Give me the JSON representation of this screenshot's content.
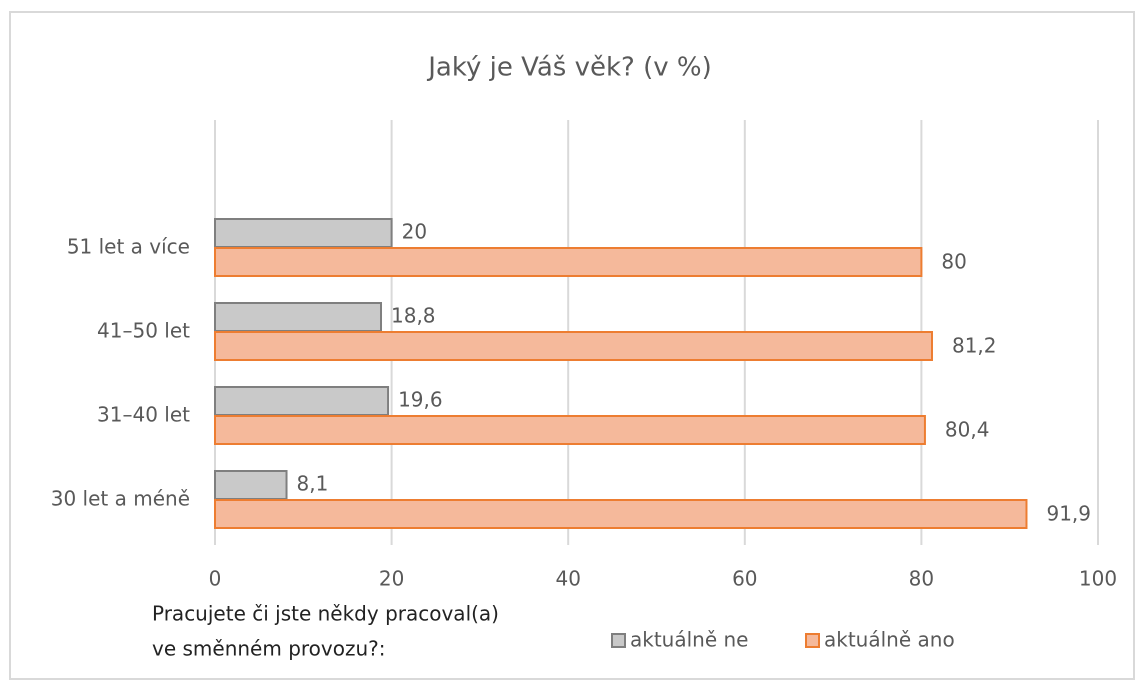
{
  "chart_data": {
    "type": "bar",
    "orientation": "horizontal",
    "title": "Jaký je Váš věk? (v %)",
    "categories": [
      "51 let a více",
      "41–50 let",
      "31–40 let",
      "30 let a méně"
    ],
    "series": [
      {
        "name": "aktuálně ne",
        "color": "#c9c9c9",
        "values": [
          20,
          18.8,
          19.6,
          8.1
        ],
        "value_labels": [
          "20",
          "18,8",
          "19,6",
          "8,1"
        ]
      },
      {
        "name": "aktuálně ano",
        "color": "#f5b99b",
        "values": [
          80,
          81.2,
          80.4,
          91.9
        ],
        "value_labels": [
          "80",
          "81,2",
          "80,4",
          "91,9"
        ]
      }
    ],
    "xlim": [
      0,
      100
    ],
    "xticks": [
      0,
      20,
      40,
      60,
      80,
      100
    ],
    "grid": true,
    "annotation": [
      "Pracujete či jste někdy pracoval(a)",
      "ve směnném provozu?:"
    ]
  }
}
